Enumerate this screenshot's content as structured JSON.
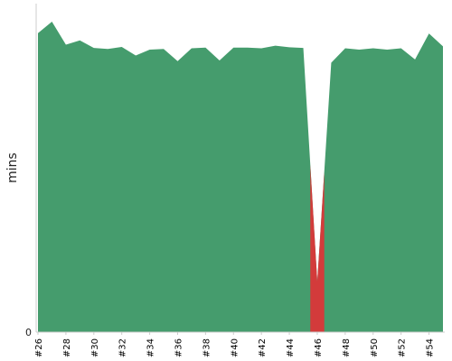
{
  "chart_data": {
    "type": "area",
    "ylabel": "mins",
    "x": [
      "#26",
      "#27",
      "#28",
      "#29",
      "#30",
      "#31",
      "#32",
      "#33",
      "#34",
      "#35",
      "#36",
      "#37",
      "#38",
      "#39",
      "#40",
      "#41",
      "#42",
      "#43",
      "#44",
      "#45",
      "#46",
      "#47",
      "#48",
      "#49",
      "#50",
      "#51",
      "#52",
      "#53",
      "#54",
      "#55"
    ],
    "xtick_labels": [
      "#26",
      "#28",
      "#30",
      "#32",
      "#34",
      "#36",
      "#38",
      "#40",
      "#42",
      "#44",
      "#46",
      "#48",
      "#50",
      "#52",
      "#54"
    ],
    "ytick_labels": [
      "0"
    ],
    "ylim": [
      0,
      100
    ],
    "values": [
      91.0,
      94.5,
      87.5,
      88.8,
      86.5,
      86.2,
      86.8,
      84.2,
      86.0,
      86.2,
      82.5,
      86.4,
      86.6,
      82.7,
      86.6,
      86.6,
      86.4,
      87.2,
      86.7,
      86.5,
      15.5,
      82.0,
      86.4,
      86.0,
      86.4,
      86.0,
      86.4,
      83.0,
      90.9,
      87.0
    ],
    "failed_build": "#46",
    "grid": false,
    "colors": {
      "success": "#459c6d",
      "failure": "#d33b3b",
      "axis": "#cccccc"
    }
  }
}
